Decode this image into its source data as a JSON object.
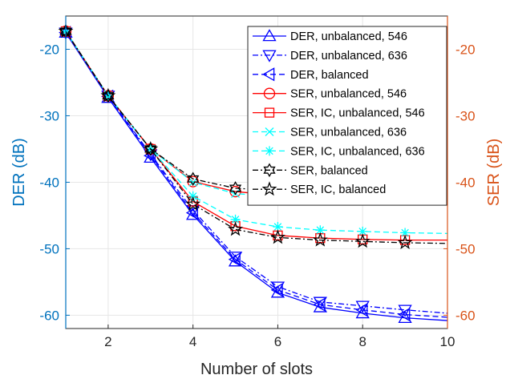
{
  "chart_data": {
    "type": "line",
    "xlabel": "Number of slots",
    "ylabel_left": "DER (dB)",
    "ylabel_right": "SER (dB)",
    "xlim": [
      1,
      10
    ],
    "ylim": [
      -62,
      -15
    ],
    "xticks": [
      2,
      4,
      6,
      8,
      10
    ],
    "yticks": [
      -20,
      -30,
      -40,
      -50,
      -60
    ],
    "grid": true,
    "legend_position": "top-right",
    "colors": {
      "left_axis": "#0072BD",
      "right_axis": "#D95319",
      "grid": "#e6e6e6"
    },
    "series": [
      {
        "name": "DER, unbalanced, 546",
        "color": "#0000ff",
        "dash": "solid",
        "marker": "triangle-up",
        "x": [
          1,
          2,
          3,
          4,
          5,
          6,
          7,
          8,
          9,
          10
        ],
        "values": [
          -17.5,
          -27.3,
          -36.3,
          -44.9,
          -51.9,
          -56.6,
          -58.8,
          -59.7,
          -60.4,
          -60.8
        ]
      },
      {
        "name": "DER, unbalanced, 636",
        "color": "#0000ff",
        "dash": "dashdot",
        "marker": "triangle-down",
        "x": [
          1,
          2,
          3,
          4,
          5,
          6,
          7,
          8,
          9,
          10
        ],
        "values": [
          -17.5,
          -27.0,
          -35.8,
          -44.2,
          -51.2,
          -55.7,
          -58.0,
          -58.6,
          -59.2,
          -59.7
        ]
      },
      {
        "name": "DER, balanced",
        "color": "#0000ff",
        "dash": "dashed",
        "marker": "triangle-left",
        "x": [
          1,
          2,
          3,
          4,
          5,
          6,
          7,
          8,
          9,
          10
        ],
        "values": [
          -17.5,
          -27.1,
          -36.0,
          -44.6,
          -51.6,
          -56.2,
          -58.4,
          -59.2,
          -59.9,
          -60.3
        ]
      },
      {
        "name": "SER, unbalanced, 546",
        "color": "#ff0000",
        "dash": "solid",
        "marker": "circle",
        "x": [
          1,
          2,
          3,
          4,
          5,
          6,
          7,
          8,
          9,
          10
        ],
        "values": [
          -17.3,
          -27.0,
          -35.0,
          -39.9,
          -41.4,
          -42.0,
          -42.2,
          -42.3,
          -42.3,
          -42.3
        ]
      },
      {
        "name": "SER, IC, unbalanced, 546",
        "color": "#ff0000",
        "dash": "solid",
        "marker": "square",
        "x": [
          1,
          2,
          3,
          4,
          5,
          6,
          7,
          8,
          9,
          10
        ],
        "values": [
          -17.3,
          -27.0,
          -35.0,
          -42.9,
          -46.6,
          -48.0,
          -48.4,
          -48.6,
          -48.7,
          -48.7
        ]
      },
      {
        "name": "SER, unbalanced, 636",
        "color": "#00ffff",
        "dash": "dashed",
        "marker": "x",
        "x": [
          1,
          2,
          3,
          4,
          5,
          6,
          7,
          8,
          9,
          10
        ],
        "values": [
          -17.3,
          -27.0,
          -35.0,
          -40.0,
          -41.7,
          -42.2,
          -42.4,
          -42.5,
          -42.5,
          -42.5
        ]
      },
      {
        "name": "SER, IC, unbalanced, 636",
        "color": "#00ffff",
        "dash": "dashed",
        "marker": "asterisk",
        "x": [
          1,
          2,
          3,
          4,
          5,
          6,
          7,
          8,
          9,
          10
        ],
        "values": [
          -17.3,
          -27.0,
          -35.0,
          -42.1,
          -45.6,
          -46.7,
          -47.2,
          -47.4,
          -47.6,
          -47.7
        ]
      },
      {
        "name": "SER, balanced",
        "color": "#000000",
        "dash": "dashdot",
        "marker": "hexagram",
        "x": [
          1,
          2,
          3,
          4,
          5,
          6,
          7,
          8,
          9,
          10
        ],
        "values": [
          -17.3,
          -27.0,
          -35.0,
          -39.5,
          -40.9,
          -41.3,
          -41.5,
          -41.6,
          -41.7,
          -41.7
        ]
      },
      {
        "name": "SER, IC, balanced",
        "color": "#000000",
        "dash": "dashdot",
        "marker": "pentagram",
        "x": [
          1,
          2,
          3,
          4,
          5,
          6,
          7,
          8,
          9,
          10
        ],
        "values": [
          -17.3,
          -27.0,
          -35.0,
          -43.3,
          -47.1,
          -48.3,
          -48.7,
          -48.9,
          -49.1,
          -49.2
        ]
      }
    ]
  }
}
